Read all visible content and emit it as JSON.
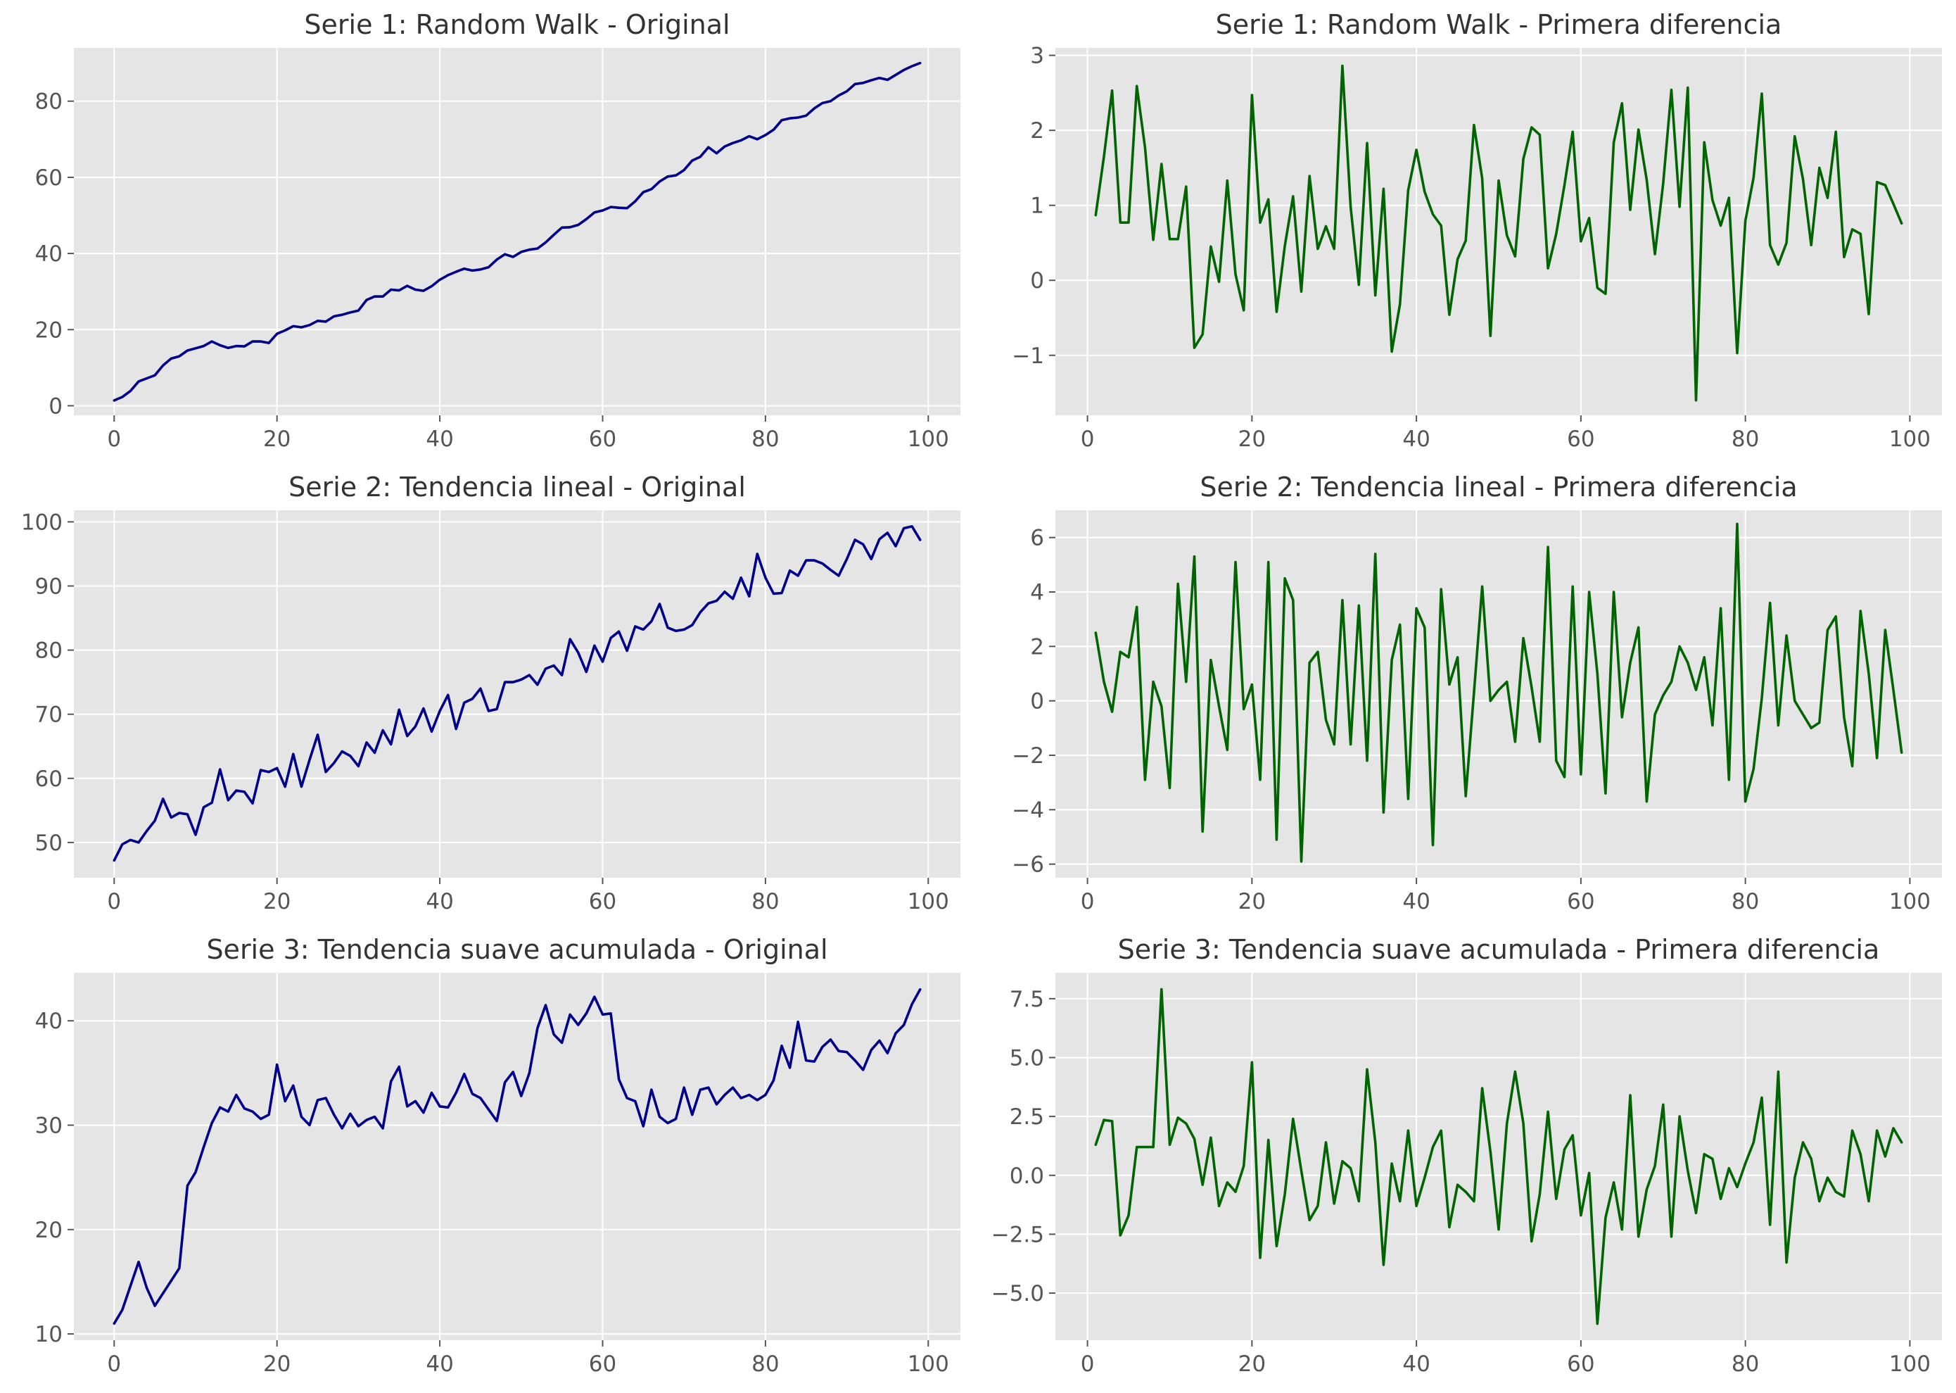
{
  "figure": {
    "background": "#ffffff",
    "axes_background": "#e5e5e5",
    "grid_color": "#ffffff",
    "original_color": "#00008b",
    "diff_color": "#006400"
  },
  "chart_data": [
    {
      "type": "line",
      "title": "Serie 1: Random Walk - Original",
      "xlim": [
        -4.95,
        103.95
      ],
      "ylim": [
        -2.5,
        94
      ],
      "xticks": [
        0,
        20,
        40,
        60,
        80,
        100
      ],
      "yticks": [
        0,
        20,
        40,
        60,
        80
      ],
      "ytick_labels": [
        "0",
        "20",
        "40",
        "60",
        "80"
      ],
      "color": "#00008b",
      "x_start": 0,
      "y": [
        1.4,
        2.3,
        3.9,
        6.4,
        7.2,
        8.0,
        10.6,
        12.4,
        13.0,
        14.5,
        15.1,
        15.7,
        16.9,
        15.9,
        15.2,
        15.7,
        15.6,
        16.9,
        16.9,
        16.5,
        18.9,
        19.8,
        20.9,
        20.6,
        21.2,
        22.3,
        22.1,
        23.5,
        23.9,
        24.5,
        25.0,
        27.8,
        28.7,
        28.7,
        30.5,
        30.3,
        31.5,
        30.5,
        30.2,
        31.4,
        33.1,
        34.3,
        35.2,
        36.0,
        35.5,
        35.8,
        36.4,
        38.4,
        39.8,
        39.1,
        40.4,
        41.0,
        41.3,
        42.9,
        44.9,
        46.8,
        46.9,
        47.5,
        49.0,
        50.8,
        51.3,
        52.2,
        52.0,
        51.9,
        53.7,
        56.1,
        56.9,
        58.9,
        60.2,
        60.5,
        61.9,
        64.4,
        65.4,
        67.9,
        66.3,
        68.1,
        69.0,
        69.7,
        70.8,
        70.0,
        71.1,
        72.5,
        75.0,
        75.5,
        75.7,
        76.2,
        78.1,
        79.5,
        80.0,
        81.5,
        82.6,
        84.5,
        84.8,
        85.5,
        86.1,
        85.6,
        86.9,
        88.2,
        89.2,
        90.0
      ],
      "xlabel": "",
      "ylabel": ""
    },
    {
      "type": "line",
      "title": "Serie 1: Random Walk - Primera diferencia",
      "xlim": [
        -3.9,
        103.9
      ],
      "ylim": [
        -1.8,
        3.1
      ],
      "xticks": [
        0,
        20,
        40,
        60,
        80,
        100
      ],
      "yticks": [
        -1,
        0,
        1,
        2,
        3
      ],
      "ytick_labels": [
        "−1",
        "0",
        "1",
        "2",
        "3"
      ],
      "color": "#006400",
      "x_start": 1,
      "y": [
        0.87,
        1.65,
        2.53,
        0.77,
        0.77,
        2.59,
        1.77,
        0.54,
        1.55,
        0.55,
        0.55,
        1.25,
        -0.9,
        -0.72,
        0.45,
        -0.02,
        1.33,
        0.08,
        -0.4,
        2.47,
        0.77,
        1.08,
        -0.42,
        0.46,
        1.12,
        -0.15,
        1.39,
        0.42,
        0.72,
        0.42,
        2.86,
        0.98,
        -0.06,
        1.83,
        -0.2,
        1.22,
        -0.95,
        -0.32,
        1.2,
        1.74,
        1.18,
        0.88,
        0.73,
        -0.46,
        0.28,
        0.53,
        2.07,
        1.36,
        -0.74,
        1.33,
        0.6,
        0.32,
        1.62,
        2.04,
        1.94,
        0.16,
        0.62,
        1.27,
        1.98,
        0.52,
        0.83,
        -0.1,
        -0.18,
        1.84,
        2.36,
        0.94,
        2.01,
        1.34,
        0.35,
        1.29,
        2.54,
        0.98,
        2.57,
        -1.6,
        1.84,
        1.07,
        0.73,
        1.1,
        -0.97,
        0.79,
        1.37,
        2.49,
        0.47,
        0.21,
        0.5,
        1.92,
        1.35,
        0.47,
        1.5,
        1.1,
        1.98,
        0.31,
        0.68,
        0.62,
        -0.45,
        1.31,
        1.27,
        1.02,
        0.76
      ],
      "xlabel": "",
      "ylabel": ""
    },
    {
      "type": "line",
      "title": "Serie 2: Tendencia lineal - Original",
      "xlim": [
        -4.95,
        103.95
      ],
      "ylim": [
        44.5,
        101.8
      ],
      "xticks": [
        0,
        20,
        40,
        60,
        80,
        100
      ],
      "yticks": [
        50,
        60,
        70,
        80,
        90,
        100
      ],
      "ytick_labels": [
        "50",
        "60",
        "70",
        "80",
        "90",
        "100"
      ],
      "color": "#00008b",
      "x_start": 0,
      "y": [
        47.2,
        49.7,
        50.4,
        50.0,
        51.8,
        53.4,
        56.8,
        53.9,
        54.6,
        54.4,
        51.2,
        55.5,
        56.2,
        61.4,
        56.6,
        58.1,
        57.9,
        56.1,
        61.3,
        61.0,
        61.6,
        58.7,
        63.8,
        58.7,
        62.9,
        66.8,
        61.0,
        62.4,
        64.2,
        63.5,
        61.9,
        65.6,
        64.0,
        67.5,
        65.3,
        70.7,
        66.6,
        68.1,
        70.9,
        67.3,
        70.5,
        73.0,
        67.7,
        71.8,
        72.4,
        74.0,
        70.5,
        70.8,
        75.0,
        75.0,
        75.4,
        76.1,
        74.6,
        77.1,
        77.6,
        76.1,
        81.7,
        79.6,
        76.6,
        80.7,
        78.2,
        81.9,
        82.9,
        79.9,
        83.7,
        83.2,
        84.5,
        87.2,
        83.5,
        83.0,
        83.2,
        83.9,
        85.9,
        87.3,
        87.7,
        89.1,
        88.0,
        91.3,
        88.4,
        95.0,
        91.3,
        88.8,
        88.9,
        92.4,
        91.6,
        94.0,
        94.0,
        93.5,
        92.5,
        91.6,
        94.2,
        97.2,
        96.5,
        94.2,
        97.3,
        98.3,
        96.2,
        99.0,
        99.3,
        97.2
      ],
      "xlabel": "",
      "ylabel": ""
    },
    {
      "type": "line",
      "title": "Serie 2: Tendencia lineal - Primera diferencia",
      "xlim": [
        -3.9,
        103.9
      ],
      "ylim": [
        -6.5,
        7.0
      ],
      "xticks": [
        0,
        20,
        40,
        60,
        80,
        100
      ],
      "yticks": [
        -6,
        -4,
        -2,
        0,
        2,
        4,
        6
      ],
      "ytick_labels": [
        "−6",
        "−4",
        "−2",
        "0",
        "2",
        "4",
        "6"
      ],
      "color": "#006400",
      "x_start": 1,
      "y": [
        2.5,
        0.7,
        -0.4,
        1.8,
        1.6,
        3.45,
        -2.9,
        0.7,
        -0.2,
        -3.2,
        4.3,
        0.7,
        5.3,
        -4.8,
        1.5,
        -0.2,
        -1.8,
        5.1,
        -0.3,
        0.6,
        -2.9,
        5.1,
        -5.1,
        4.5,
        3.7,
        -5.9,
        1.4,
        1.8,
        -0.7,
        -1.6,
        3.7,
        -1.6,
        3.5,
        -2.2,
        5.4,
        -4.1,
        1.5,
        2.8,
        -3.6,
        3.4,
        2.7,
        -5.3,
        4.1,
        0.6,
        1.6,
        -3.5,
        0.3,
        4.2,
        0.0,
        0.4,
        0.7,
        -1.5,
        2.3,
        0.5,
        -1.5,
        5.65,
        -2.2,
        -2.8,
        4.2,
        -2.7,
        4.0,
        1.0,
        -3.4,
        4.0,
        -0.6,
        1.4,
        2.7,
        -3.7,
        -0.5,
        0.2,
        0.7,
        2.0,
        1.4,
        0.4,
        1.6,
        -0.9,
        3.4,
        -2.9,
        6.5,
        -3.7,
        -2.5,
        0.1,
        3.6,
        -0.9,
        2.4,
        0.0,
        -0.5,
        -1.0,
        -0.8,
        2.6,
        3.1,
        -0.6,
        -2.4,
        3.3,
        1.0,
        -2.1,
        2.6,
        0.4,
        -1.9
      ],
      "xlabel": "",
      "ylabel": ""
    },
    {
      "type": "line",
      "title": "Serie 3: Tendencia suave acumulada - Original",
      "xlim": [
        -4.95,
        103.95
      ],
      "ylim": [
        9.4,
        44.6
      ],
      "xticks": [
        0,
        20,
        40,
        60,
        80,
        100
      ],
      "yticks": [
        10,
        20,
        30,
        40
      ],
      "ytick_labels": [
        "10",
        "20",
        "30",
        "40"
      ],
      "color": "#00008b",
      "x_start": 0,
      "y": [
        11.0,
        12.3,
        14.6,
        16.9,
        14.4,
        12.7,
        13.9,
        15.1,
        16.3,
        24.2,
        25.5,
        27.9,
        30.2,
        31.7,
        31.3,
        32.9,
        31.6,
        31.3,
        30.6,
        31.0,
        35.8,
        32.3,
        33.8,
        30.8,
        30.0,
        32.4,
        32.6,
        31.0,
        29.7,
        31.1,
        29.9,
        30.5,
        30.8,
        29.7,
        34.2,
        35.6,
        31.8,
        32.3,
        31.2,
        33.1,
        31.8,
        31.7,
        33.1,
        34.9,
        33.0,
        32.6,
        31.5,
        30.4,
        34.1,
        35.1,
        32.8,
        35.0,
        39.3,
        41.5,
        38.7,
        37.9,
        40.6,
        39.6,
        40.7,
        42.3,
        40.6,
        40.7,
        34.4,
        32.6,
        32.3,
        29.9,
        33.4,
        30.8,
        30.2,
        30.6,
        33.6,
        31.0,
        33.4,
        33.6,
        32.0,
        32.9,
        33.6,
        32.6,
        32.9,
        32.4,
        32.9,
        34.3,
        37.6,
        35.5,
        39.9,
        36.2,
        36.1,
        37.5,
        38.2,
        37.1,
        37.0,
        36.2,
        35.3,
        37.2,
        38.1,
        36.9,
        38.8,
        39.6,
        41.6,
        43.0
      ],
      "xlabel": "",
      "ylabel": ""
    },
    {
      "type": "line",
      "title": "Serie 3: Tendencia suave acumulada - Primera diferencia",
      "xlim": [
        -3.9,
        103.9
      ],
      "ylim": [
        -7.0,
        8.6
      ],
      "xticks": [
        0,
        20,
        40,
        60,
        80,
        100
      ],
      "yticks": [
        -5.0,
        -2.5,
        0.0,
        2.5,
        5.0,
        7.5
      ],
      "ytick_labels": [
        "−5.0",
        "−2.5",
        "0.0",
        "2.5",
        "5.0",
        "7.5"
      ],
      "color": "#006400",
      "x_start": 1,
      "y": [
        1.3,
        2.35,
        2.3,
        -2.55,
        -1.7,
        1.2,
        1.2,
        1.2,
        7.9,
        1.3,
        2.45,
        2.2,
        1.55,
        -0.4,
        1.6,
        -1.3,
        -0.3,
        -0.7,
        0.4,
        4.8,
        -3.5,
        1.5,
        -3.0,
        -0.8,
        2.4,
        0.2,
        -1.9,
        -1.3,
        1.4,
        -1.2,
        0.6,
        0.3,
        -1.1,
        4.5,
        1.4,
        -3.8,
        0.5,
        -1.1,
        1.9,
        -1.3,
        -0.1,
        1.2,
        1.9,
        -2.2,
        -0.4,
        -0.7,
        -1.1,
        3.7,
        1.0,
        -2.3,
        2.2,
        4.4,
        2.2,
        -2.8,
        -0.8,
        2.7,
        -1.0,
        1.1,
        1.7,
        -1.7,
        0.1,
        -6.3,
        -1.8,
        -0.3,
        -2.3,
        3.4,
        -2.6,
        -0.6,
        0.4,
        3.0,
        -2.6,
        2.5,
        0.2,
        -1.6,
        0.9,
        0.7,
        -1.0,
        0.3,
        -0.5,
        0.5,
        1.4,
        3.3,
        -2.1,
        4.4,
        -3.7,
        -0.1,
        1.4,
        0.7,
        -1.1,
        -0.1,
        -0.7,
        -0.9,
        1.9,
        0.9,
        -1.1,
        1.9,
        0.8,
        2.0,
        1.4
      ],
      "xlabel": "",
      "ylabel": ""
    }
  ]
}
